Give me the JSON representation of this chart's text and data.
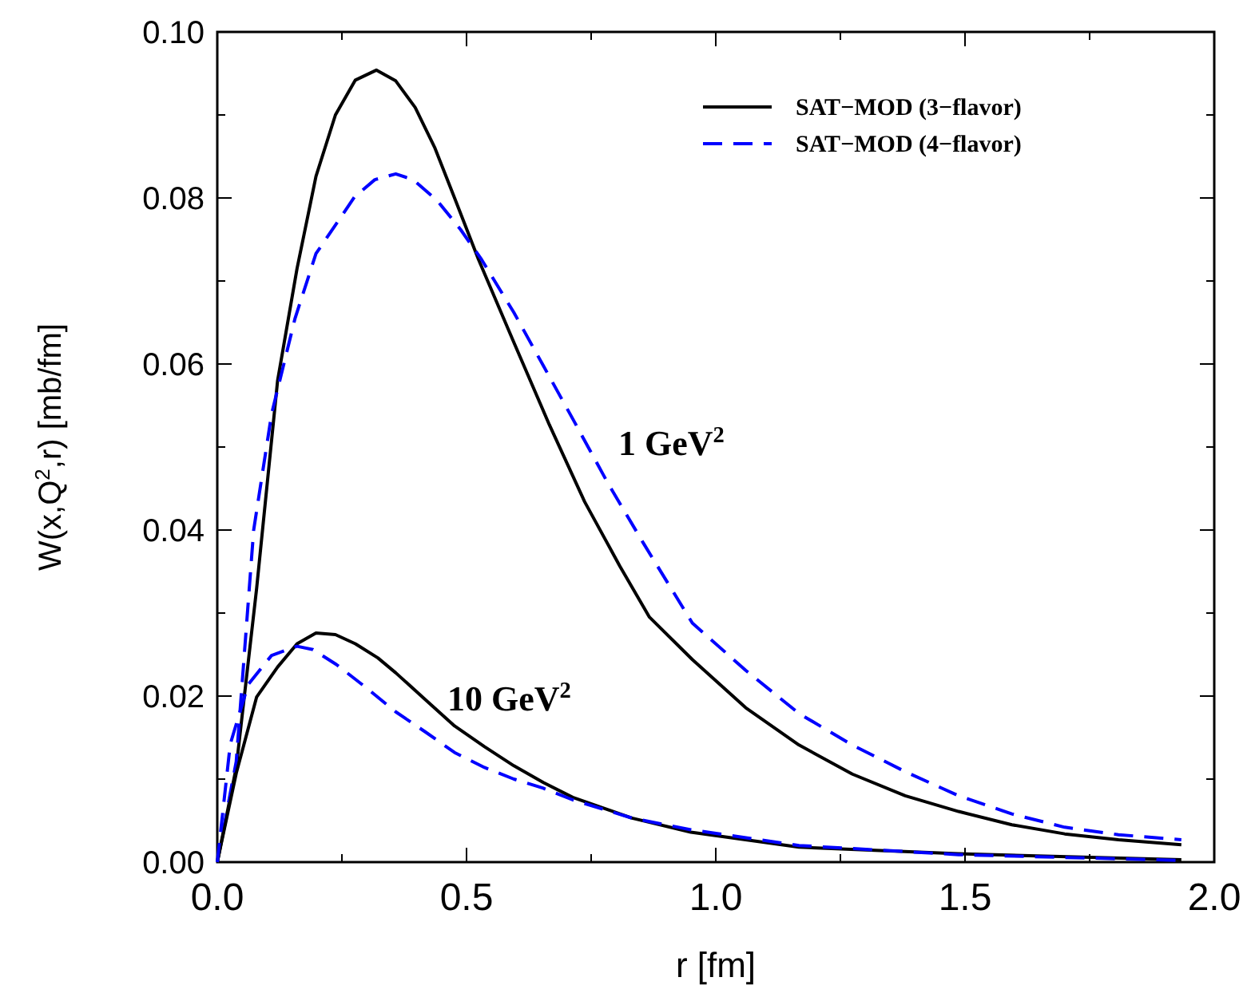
{
  "chart_data": {
    "type": "line",
    "xlabel": "r [fm]",
    "ylabel": "W(x,Q$^{2}$,r) [mb/fm]",
    "xlim": [
      0,
      2
    ],
    "ylim": [
      0,
      0.1
    ],
    "xticks": [
      {
        "value": 0,
        "label": "0.0"
      },
      {
        "value": 0.25,
        "label": null
      },
      {
        "value": 0.5,
        "label": "0.5"
      },
      {
        "value": 0.75,
        "label": null
      },
      {
        "value": 1,
        "label": "1.0"
      },
      {
        "value": 1.25,
        "label": null
      },
      {
        "value": 1.5,
        "label": "1.5"
      },
      {
        "value": 1.75,
        "label": null
      },
      {
        "value": 2,
        "label": "2.0"
      }
    ],
    "yticks": [
      {
        "value": 0,
        "label": "0.00"
      },
      {
        "value": 0.01,
        "label": null
      },
      {
        "value": 0.02,
        "label": "0.02"
      },
      {
        "value": 0.03,
        "label": null
      },
      {
        "value": 0.04,
        "label": "0.04"
      },
      {
        "value": 0.05,
        "label": null
      },
      {
        "value": 0.06,
        "label": "0.06"
      },
      {
        "value": 0.07,
        "label": null
      },
      {
        "value": 0.08,
        "label": "0.08"
      },
      {
        "value": 0.09,
        "label": null
      },
      {
        "value": 0.1,
        "label": "0.10"
      }
    ],
    "grid": false,
    "legend": "top right",
    "marker": "none",
    "series": [
      {
        "name": "SAT−MOD (3−flavor)",
        "color": "#000000",
        "line_style": "solid",
        "x": [
          0,
          0.038,
          0.079,
          0.121,
          0.16,
          0.198,
          0.237,
          0.277,
          0.319,
          0.358,
          0.397,
          0.436,
          0.476,
          0.524,
          0.595,
          0.666,
          0.737,
          0.808,
          0.867,
          0.953,
          1.06,
          1.167,
          1.274,
          1.38,
          1.487,
          1.594,
          1.7,
          1.808,
          1.934
        ],
        "values": [
          0,
          0.0114,
          0.033,
          0.058,
          0.0715,
          0.0826,
          0.09,
          0.0942,
          0.0954,
          0.0941,
          0.0909,
          0.0861,
          0.08,
          0.0726,
          0.0626,
          0.0527,
          0.0434,
          0.0356,
          0.0295,
          0.0244,
          0.0186,
          0.0141,
          0.0106,
          0.008,
          0.0061,
          0.0045,
          0.0034,
          0.0027,
          0.0021
        ]
      },
      {
        "name": "SAT−MOD (4−flavor)",
        "color": "#0000ff",
        "line_style": "dashed",
        "x": [
          0,
          0.038,
          0.073,
          0.109,
          0.156,
          0.198,
          0.239,
          0.275,
          0.316,
          0.358,
          0.393,
          0.441,
          0.488,
          0.53,
          0.595,
          0.654,
          0.713,
          0.784,
          0.855,
          0.953,
          1.06,
          1.167,
          1.274,
          1.38,
          1.487,
          1.594,
          1.7,
          1.808,
          1.934
        ],
        "values": [
          0,
          0.0121,
          0.04,
          0.054,
          0.0655,
          0.0733,
          0.0769,
          0.0801,
          0.0822,
          0.0829,
          0.0822,
          0.0797,
          0.0762,
          0.0726,
          0.0662,
          0.0598,
          0.0534,
          0.0456,
          0.0384,
          0.0288,
          0.0231,
          0.0179,
          0.0141,
          0.0109,
          0.008,
          0.0058,
          0.0042,
          0.0033,
          0.0027
        ]
      },
      {
        "color": "#000000",
        "line_style": "solid",
        "x": [
          0,
          0.038,
          0.079,
          0.121,
          0.16,
          0.198,
          0.237,
          0.277,
          0.322,
          0.358,
          0.417,
          0.476,
          0.536,
          0.595,
          0.654,
          0.713,
          0.832,
          0.95,
          1.167,
          1.487,
          1.934
        ],
        "values": [
          0,
          0.0107,
          0.0199,
          0.0235,
          0.0263,
          0.0276,
          0.0274,
          0.0263,
          0.0246,
          0.0228,
          0.0196,
          0.0164,
          0.0139,
          0.0116,
          0.0096,
          0.0078,
          0.0053,
          0.0036,
          0.0018,
          0.001,
          0.0003
        ]
      },
      {
        "color": "#0000ff",
        "line_style": "dashed",
        "x": [
          0,
          0.026,
          0.062,
          0.109,
          0.16,
          0.192,
          0.239,
          0.299,
          0.358,
          0.417,
          0.476,
          0.536,
          0.595,
          0.654,
          0.713,
          0.832,
          0.95,
          1.167,
          1.487,
          1.934
        ],
        "values": [
          0,
          0.0142,
          0.0214,
          0.0249,
          0.026,
          0.0256,
          0.0238,
          0.021,
          0.0181,
          0.0157,
          0.0132,
          0.0114,
          0.01,
          0.0089,
          0.0075,
          0.0053,
          0.0039,
          0.002,
          0.0009,
          0.0002
        ]
      }
    ],
    "annotations": [
      "1 GeV$^{2}$",
      "10 GeV$^{2}$"
    ]
  }
}
